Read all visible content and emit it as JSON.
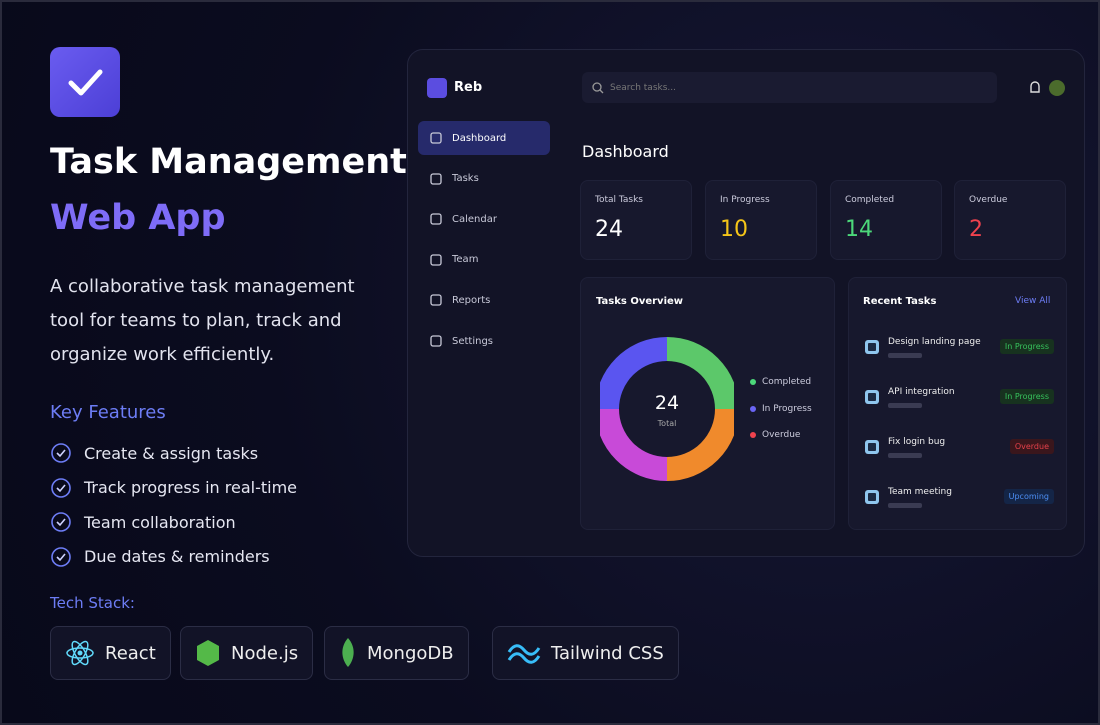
{
  "hero": {
    "title_line1": "Task Management",
    "title_line2": "Web App",
    "description": "A collaborative task management tool for teams to plan, track and organize work efficiently.",
    "features_heading": "Key Features",
    "features": [
      "Create & assign tasks",
      "Track progress in real-time",
      "Team collaboration",
      "Due dates & reminders"
    ],
    "tech_heading": "Tech Stack:",
    "tech": [
      "React",
      "Node.js",
      "MongoDB",
      "Tailwind CSS"
    ]
  },
  "app": {
    "brand": "Reb",
    "search_placeholder": "Search tasks...",
    "nav": [
      "Dashboard",
      "Tasks",
      "Calendar",
      "Team",
      "Reports",
      "Settings"
    ],
    "page_title": "Dashboard",
    "stats": [
      {
        "label": "Total Tasks",
        "value": 24
      },
      {
        "label": "In Progress",
        "value": 10
      },
      {
        "label": "Completed",
        "value": 14
      },
      {
        "label": "Overdue",
        "value": 2
      }
    ],
    "overview": {
      "title": "Tasks Overview",
      "center_value": 24,
      "center_label": "Total",
      "legend": [
        "Completed",
        "In Progress",
        "Overdue"
      ]
    },
    "recent": {
      "title": "Recent Tasks",
      "view_all": "View All",
      "tasks": [
        {
          "name": "Design landing page",
          "status": "In Progress"
        },
        {
          "name": "API integration",
          "status": "In Progress"
        },
        {
          "name": "Fix login bug",
          "status": "Overdue"
        },
        {
          "name": "Team meeting",
          "status": "Upcoming"
        }
      ]
    }
  }
}
